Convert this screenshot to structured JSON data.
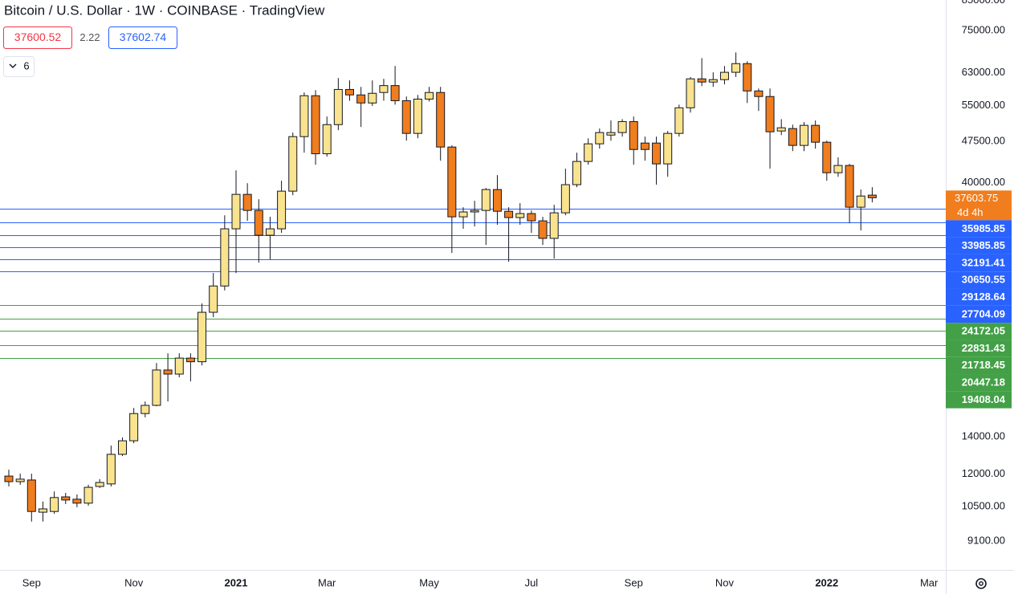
{
  "chart_data": {
    "type": "candlestick",
    "title": "Bitcoin / U.S. Dollar · 1W · COINBASE · TradingView",
    "quote": {
      "bid": 37600.52,
      "spread": 2.22,
      "ask": 37602.74
    },
    "indicator_count": 6,
    "countdown": "4d 4h",
    "log_scale": true,
    "up_color": "#f9e38f",
    "down_color": "#f07d1e",
    "categories": [
      null,
      null,
      "Sep",
      null,
      null,
      null,
      null,
      null,
      null,
      null,
      null,
      "Nov",
      null,
      null,
      null,
      null,
      null,
      null,
      null,
      null,
      "2021",
      null,
      null,
      null,
      null,
      null,
      null,
      null,
      "Mar",
      null,
      null,
      null,
      null,
      null,
      null,
      null,
      null,
      "May",
      null,
      null,
      null,
      null,
      null,
      null,
      null,
      null,
      "Jul",
      null,
      null,
      null,
      null,
      null,
      null,
      null,
      null,
      "Sep",
      null,
      null,
      null,
      null,
      null,
      null,
      null,
      "Nov",
      null,
      null,
      null,
      null,
      null,
      null,
      null,
      null,
      "2022",
      null,
      null,
      null,
      null,
      null,
      null,
      null,
      null,
      "Mar"
    ],
    "open": [
      11900,
      11630,
      11710,
      10250,
      10280,
      10920,
      10815,
      10640,
      11400,
      11520,
      13020,
      13770,
      15410,
      15940,
      18450,
      18140,
      19380,
      19090,
      23420,
      26110,
      33070,
      38130,
      35680,
      32200,
      33070,
      38640,
      48410,
      57330,
      45100,
      50870,
      58830,
      57520,
      55630,
      58100,
      59780,
      56160,
      49060,
      56530,
      58100,
      46370,
      34750,
      35460,
      35680,
      38900,
      35560,
      34640,
      35220,
      34180,
      31790,
      35330,
      39690,
      43690,
      46990,
      48720,
      49230,
      51520,
      47140,
      47140,
      43250,
      49060,
      54540,
      61470,
      60660,
      61270,
      63150,
      65460,
      58470,
      57140,
      49550,
      50050,
      46680,
      50720,
      47300,
      41700,
      42970,
      36160,
      38010,
      null,
      null,
      null,
      null,
      null
    ],
    "high": [
      12220,
      12020,
      12020,
      10710,
      11170,
      11100,
      11030,
      11480,
      11750,
      13500,
      13960,
      15770,
      16200,
      18990,
      19770,
      19770,
      19770,
      24290,
      27550,
      34970,
      42110,
      39930,
      37370,
      34760,
      40340,
      49230,
      58100,
      58670,
      52600,
      61670,
      61070,
      59460,
      61070,
      61470,
      64820,
      57140,
      57520,
      59460,
      59460,
      46680,
      36160,
      37130,
      39150,
      41290,
      36160,
      36760,
      35680,
      34750,
      36520,
      42400,
      45300,
      48080,
      50050,
      51750,
      52030,
      52600,
      48410,
      48410,
      49550,
      55250,
      61940,
      66970,
      63150,
      64820,
      68550,
      66120,
      59060,
      59060,
      52030,
      50870,
      51400,
      51750,
      47610,
      44420,
      43250,
      38900,
      39280,
      null,
      null,
      null,
      null,
      null
    ],
    "low": [
      11400,
      11480,
      9860,
      9860,
      10180,
      10600,
      10460,
      10530,
      11330,
      11400,
      12930,
      13630,
      15170,
      15880,
      16200,
      17900,
      17600,
      18800,
      22950,
      25640,
      27550,
      34180,
      28760,
      29140,
      32530,
      38000,
      45300,
      43100,
      44570,
      49720,
      56160,
      50380,
      54960,
      56160,
      55250,
      47610,
      48080,
      55980,
      43830,
      29930,
      33070,
      33400,
      30940,
      33620,
      28860,
      33620,
      32530,
      30940,
      29240,
      34970,
      39290,
      43100,
      46060,
      47610,
      48410,
      43100,
      43830,
      39690,
      41010,
      48410,
      53470,
      59660,
      59460,
      60070,
      61940,
      55630,
      53830,
      42410,
      48720,
      45600,
      45600,
      46060,
      40340,
      41010,
      33840,
      32860,
      36890,
      null,
      null,
      null,
      null,
      null
    ],
    "close": [
      11630,
      11750,
      10280,
      10390,
      10890,
      10780,
      10640,
      11360,
      11590,
      13020,
      13770,
      15410,
      15940,
      18450,
      18140,
      19380,
      19090,
      23420,
      26110,
      33070,
      38130,
      35680,
      32200,
      33070,
      38640,
      48410,
      57330,
      45100,
      50870,
      58830,
      57520,
      55630,
      57900,
      59780,
      56160,
      49060,
      56530,
      58100,
      46370,
      34750,
      35460,
      35680,
      38900,
      35560,
      34640,
      35220,
      34180,
      31790,
      35330,
      39690,
      43690,
      46990,
      49230,
      49230,
      51520,
      45900,
      45900,
      43250,
      49060,
      54540,
      61470,
      60660,
      61270,
      63150,
      65460,
      58470,
      57140,
      49390,
      50210,
      46680,
      50720,
      47300,
      41700,
      42970,
      36160,
      37870,
      37603.75,
      null,
      null,
      null,
      null,
      null
    ],
    "levels": [
      {
        "value": 35985.85,
        "color": "#2962ff"
      },
      {
        "value": 33985.85,
        "color": "#2962ff"
      },
      {
        "value": 32191.41,
        "color": "#2962ff"
      },
      {
        "value": 30650.55,
        "color": "#2962ff"
      },
      {
        "value": 29128.64,
        "color": "#2962ff"
      },
      {
        "value": 27704.09,
        "color": "#2962ff"
      },
      {
        "value": 24172.05,
        "color": "#43a047"
      },
      {
        "value": 22831.43,
        "color": "#43a047"
      },
      {
        "value": 21718.45,
        "color": "#43a047"
      },
      {
        "value": 20447.18,
        "color": "#43a047"
      },
      {
        "value": 19408.04,
        "color": "#43a047"
      }
    ],
    "ylim": [
      8074,
      85150
    ],
    "yticks": [
      {
        "value": 85000,
        "label": "85000.00"
      },
      {
        "value": 75000,
        "label": "75000.00"
      },
      {
        "value": 63000,
        "label": "63000.00"
      },
      {
        "value": 55000,
        "label": "55000.00"
      },
      {
        "value": 47500,
        "label": "47500.00"
      },
      {
        "value": 40000,
        "label": "40000.00"
      },
      {
        "value": 14000,
        "label": "14000.00"
      },
      {
        "value": 12000,
        "label": "12000.00"
      },
      {
        "value": 10500,
        "label": "10500.00"
      },
      {
        "value": 9100,
        "label": "9100.00"
      }
    ]
  }
}
